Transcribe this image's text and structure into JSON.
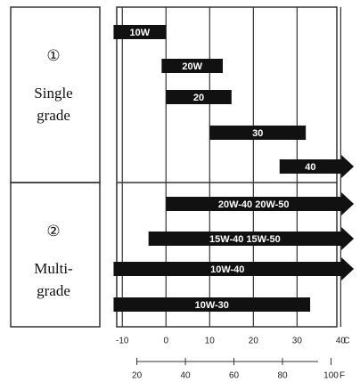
{
  "chart_data": {
    "type": "range-bar",
    "groups": [
      {
        "number": "①",
        "lines": [
          "Single",
          "grade"
        ],
        "rows": [
          0,
          4
        ]
      },
      {
        "number": "②",
        "lines": [
          "Multi-",
          "grade"
        ],
        "rows": [
          5,
          8
        ]
      }
    ],
    "bars": [
      {
        "label": "10W",
        "start": -12,
        "end": 0,
        "arrow": false
      },
      {
        "label": "20W",
        "start": -1,
        "end": 13,
        "arrow": false
      },
      {
        "label": "20",
        "start": 0,
        "end": 15,
        "arrow": false
      },
      {
        "label": "30",
        "start": 10,
        "end": 32,
        "arrow": false
      },
      {
        "label": "40",
        "start": 26,
        "end": 43,
        "arrow": true
      },
      {
        "label": "20W-40 20W-50",
        "start": 0,
        "end": 43,
        "arrow": true
      },
      {
        "label": "15W-40 15W-50",
        "start": -4,
        "end": 43,
        "arrow": true
      },
      {
        "label": "10W-40",
        "start": -12,
        "end": 43,
        "arrow": true
      },
      {
        "label": "10W-30",
        "start": -12,
        "end": 33,
        "arrow": false
      }
    ],
    "color": "#111111",
    "xlim": [
      -12.5,
      44
    ],
    "xticks": [
      -10,
      0,
      10,
      20,
      30,
      40
    ],
    "x_unit": "C",
    "x2lim": [
      9.5,
      111.2
    ],
    "x2ticks": [
      20,
      40,
      60,
      80,
      100
    ],
    "x2_unit": "F",
    "grid": true
  }
}
